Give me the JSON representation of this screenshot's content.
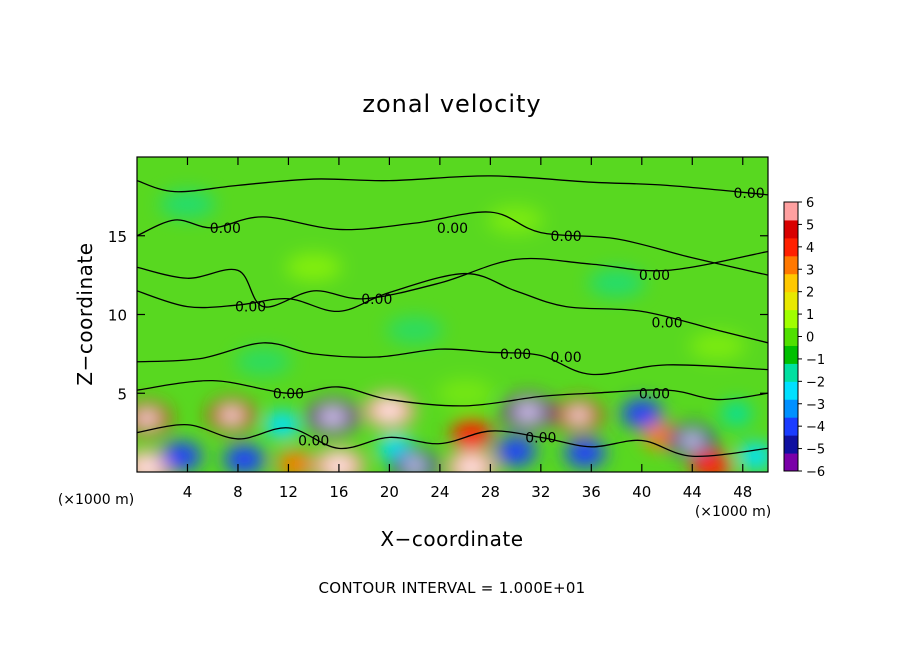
{
  "chart_data": {
    "type": "heatmap",
    "title": "zonal velocity",
    "xlabel": "X−coordinate",
    "ylabel": "Z−coordinate",
    "x_unit_note": "(×1000 m)",
    "y_unit_note": "(×1000 m)",
    "xlim": [
      0,
      50
    ],
    "ylim": [
      0,
      20
    ],
    "x_ticks": [
      4,
      8,
      12,
      16,
      20,
      24,
      28,
      32,
      36,
      40,
      44,
      48
    ],
    "y_ticks": [
      5,
      10,
      15
    ],
    "colorbar": {
      "ticks": [
        "6",
        "5",
        "4",
        "3",
        "2",
        "1",
        "0",
        "−1",
        "−2",
        "−3",
        "−4",
        "−5",
        "−6"
      ],
      "range": [
        -6,
        6
      ],
      "colors": [
        "#7a00a8",
        "#1010a0",
        "#1a3cff",
        "#0090ff",
        "#00e0ff",
        "#00e0a0",
        "#00c000",
        "#50e000",
        "#a0ff00",
        "#e8e800",
        "#ffc800",
        "#ff7800",
        "#ff2000",
        "#d80000",
        "#ffa0a0"
      ]
    },
    "anomalies": [
      {
        "x": 0.8,
        "z": 3.4,
        "value": 5
      },
      {
        "x": 0.8,
        "z": 0.3,
        "value": 6
      },
      {
        "x": 3.5,
        "z": 1.0,
        "value": -4
      },
      {
        "x": 7.5,
        "z": 3.6,
        "value": 5
      },
      {
        "x": 8.5,
        "z": 0.8,
        "value": -4
      },
      {
        "x": 11.5,
        "z": 3.0,
        "value": -3
      },
      {
        "x": 12.5,
        "z": 0.5,
        "value": 3
      },
      {
        "x": 15.5,
        "z": 3.5,
        "value": -6
      },
      {
        "x": 16.0,
        "z": 0.4,
        "value": 6
      },
      {
        "x": 20.0,
        "z": 3.9,
        "value": 6
      },
      {
        "x": 20.5,
        "z": 1.5,
        "value": -3
      },
      {
        "x": 22.0,
        "z": 0.4,
        "value": -5
      },
      {
        "x": 26.5,
        "z": 2.4,
        "value": 4
      },
      {
        "x": 26.5,
        "z": 0.3,
        "value": 6
      },
      {
        "x": 30.0,
        "z": 1.3,
        "value": -4
      },
      {
        "x": 31.0,
        "z": 3.8,
        "value": -6
      },
      {
        "x": 35.0,
        "z": 3.6,
        "value": 5
      },
      {
        "x": 35.5,
        "z": 1.2,
        "value": -4
      },
      {
        "x": 40.0,
        "z": 3.7,
        "value": -4
      },
      {
        "x": 41.5,
        "z": 2.3,
        "value": 3
      },
      {
        "x": 44.0,
        "z": 2.0,
        "value": -5
      },
      {
        "x": 45.5,
        "z": 0.4,
        "value": 4
      },
      {
        "x": 47.5,
        "z": 3.7,
        "value": -2
      },
      {
        "x": 49.0,
        "z": 1.0,
        "value": -3
      }
    ],
    "contour_labels": [
      {
        "text": "0.00",
        "x": 48.5,
        "z": 17.7
      },
      {
        "text": "0.00",
        "x": 7.0,
        "z": 15.5
      },
      {
        "text": "0.00",
        "x": 25.0,
        "z": 15.5
      },
      {
        "text": "0.00",
        "x": 34.0,
        "z": 15.0
      },
      {
        "text": "0.00",
        "x": 41.0,
        "z": 12.5
      },
      {
        "text": "0.00",
        "x": 19.0,
        "z": 11.0
      },
      {
        "text": "0.00",
        "x": 9.0,
        "z": 10.5
      },
      {
        "text": "0.00",
        "x": 42.0,
        "z": 9.5
      },
      {
        "text": "0.00",
        "x": 30.0,
        "z": 7.5
      },
      {
        "text": "0.00",
        "x": 34.0,
        "z": 7.3
      },
      {
        "text": "0.00",
        "x": 12.0,
        "z": 5.0
      },
      {
        "text": "0.00",
        "x": 41.0,
        "z": 5.0
      },
      {
        "text": "0.00",
        "x": 14.0,
        "z": 2.0
      },
      {
        "text": "0.00",
        "x": 32.0,
        "z": 2.2
      }
    ],
    "footer": "CONTOUR INTERVAL = 1.000E+01"
  }
}
